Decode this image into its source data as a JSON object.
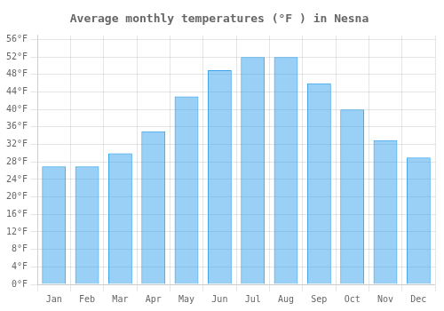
{
  "chart_data": {
    "type": "bar",
    "title": "Average monthly temperatures (°F ) in Nesna",
    "categories": [
      "Jan",
      "Feb",
      "Mar",
      "Apr",
      "May",
      "Jun",
      "Jul",
      "Aug",
      "Sep",
      "Oct",
      "Nov",
      "Dec"
    ],
    "values": [
      27,
      27,
      30,
      35,
      43,
      49,
      52,
      52,
      46,
      40,
      33,
      29
    ],
    "ylim": [
      0,
      57
    ],
    "yticks": [
      {
        "value": 0,
        "label": "0°F"
      },
      {
        "value": 4,
        "label": "4°F"
      },
      {
        "value": 8,
        "label": "8°F"
      },
      {
        "value": 12,
        "label": "12°F"
      },
      {
        "value": 16,
        "label": "16°F"
      },
      {
        "value": 20,
        "label": "20°F"
      },
      {
        "value": 24,
        "label": "24°F"
      },
      {
        "value": 28,
        "label": "28°F"
      },
      {
        "value": 32,
        "label": "32°F"
      },
      {
        "value": 36,
        "label": "36°F"
      },
      {
        "value": 40,
        "label": "40°F"
      },
      {
        "value": 44,
        "label": "44°F"
      },
      {
        "value": 48,
        "label": "48°F"
      },
      {
        "value": 52,
        "label": "52°F"
      },
      {
        "value": 56,
        "label": "56°F"
      }
    ],
    "grid": true
  }
}
